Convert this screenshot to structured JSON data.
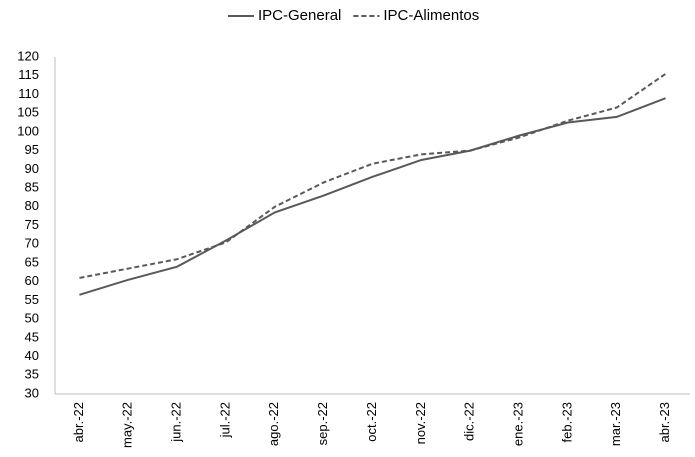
{
  "chart_data": {
    "type": "line",
    "categories": [
      "abr.-22",
      "may.-22",
      "jun.-22",
      "jul.-22",
      "ago.-22",
      "sep.-22",
      "oct.-22",
      "nov.-22",
      "dic.-22",
      "ene.-23",
      "feb.-23",
      "mar.-23",
      "abr.-23"
    ],
    "series": [
      {
        "name": "IPC-General",
        "color": "#595959",
        "dash": "solid",
        "values": [
          56.5,
          60.5,
          64,
          71,
          78.5,
          83,
          88,
          92.5,
          95,
          99,
          102.5,
          104,
          109
        ]
      },
      {
        "name": "IPC-Alimentos",
        "color": "#595959",
        "dash": "dashed",
        "values": [
          61,
          63.5,
          66,
          70.5,
          80,
          86.5,
          91.5,
          94,
          95,
          98.5,
          103,
          106.5,
          115.5
        ]
      }
    ],
    "ylim": [
      30,
      120
    ],
    "yticks": [
      30,
      35,
      40,
      45,
      50,
      55,
      60,
      65,
      70,
      75,
      80,
      85,
      90,
      95,
      100,
      105,
      110,
      115,
      120
    ],
    "grid": false,
    "legend": "top"
  }
}
